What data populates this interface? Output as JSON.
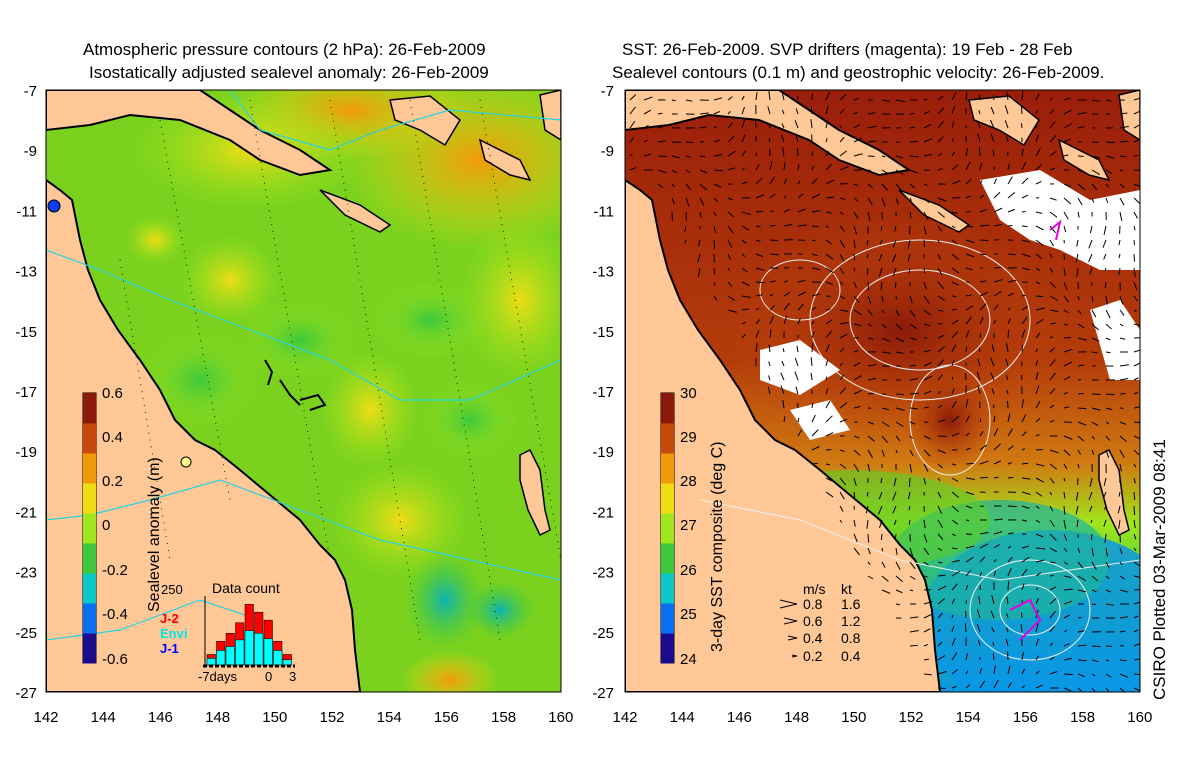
{
  "left_panel": {
    "title_line1": "Atmospheric pressure contours (2 hPa): 26-Feb-2009",
    "title_line2": "Isostatically adjusted sealevel anomaly: 26-Feb-2009",
    "colorbar": {
      "label": "Sealevel anomaly (m)",
      "ticks": [
        "0.6",
        "0.4",
        "0.2",
        "0",
        "-0.2",
        "-0.4",
        "-0.6"
      ],
      "colors": [
        "#1a0a8c",
        "#0a6ef0",
        "#0ac8c8",
        "#3cc83c",
        "#a0e61e",
        "#f0dc14",
        "#f09a0a",
        "#c84a0a",
        "#8a1a0a"
      ]
    },
    "inset": {
      "title": "Data count",
      "ymax": "250",
      "legend": [
        {
          "name": "J-2",
          "color": "#ff0000"
        },
        {
          "name": "Envi",
          "color": "#00ffff"
        },
        {
          "name": "J-1",
          "color": "#0000ff"
        }
      ],
      "xlabels": [
        "-7days",
        "0",
        "3"
      ],
      "bars": [
        40,
        90,
        120,
        160,
        230,
        200,
        170,
        90,
        40
      ],
      "env": [
        25,
        55,
        70,
        95,
        130,
        120,
        100,
        55,
        20
      ]
    }
  },
  "right_panel": {
    "title_line1": "SST: 26-Feb-2009. SVP drifters (magenta): 19 Feb - 28 Feb",
    "title_line2": "Sealevel contours (0.1 m) and geostrophic velocity: 26-Feb-2009.",
    "colorbar": {
      "label": "3-day SST composite (deg C)",
      "ticks": [
        "30",
        "29",
        "28",
        "27",
        "26",
        "25",
        "24"
      ],
      "colors": [
        "#1a0a8c",
        "#0a6ef0",
        "#0ac8c8",
        "#3cc83c",
        "#a0e61e",
        "#f0dc14",
        "#f09a0a",
        "#c84a0a",
        "#8a1a0a"
      ]
    },
    "velocity_legend": {
      "header_ms": "m/s",
      "header_kt": "kt",
      "rows": [
        {
          "ms": "0.8",
          "kt": "1.6"
        },
        {
          "ms": "0.6",
          "kt": "1.2"
        },
        {
          "ms": "0.4",
          "kt": "0.8"
        },
        {
          "ms": "0.2",
          "kt": "0.4"
        }
      ]
    }
  },
  "axes": {
    "lat_ticks": [
      "-7",
      "-9",
      "-11",
      "-13",
      "-15",
      "-17",
      "-19",
      "-21",
      "-23",
      "-25",
      "-27"
    ],
    "lon_ticks": [
      "142",
      "144",
      "146",
      "148",
      "150",
      "152",
      "154",
      "156",
      "158",
      "160"
    ]
  },
  "plotted_label": "CSIRO Plotted 03-Mar-2009 08:41",
  "colors": {
    "land": "#ffc896",
    "sea_green": "#7ad21e",
    "sst_hot": "#a01e0a"
  }
}
